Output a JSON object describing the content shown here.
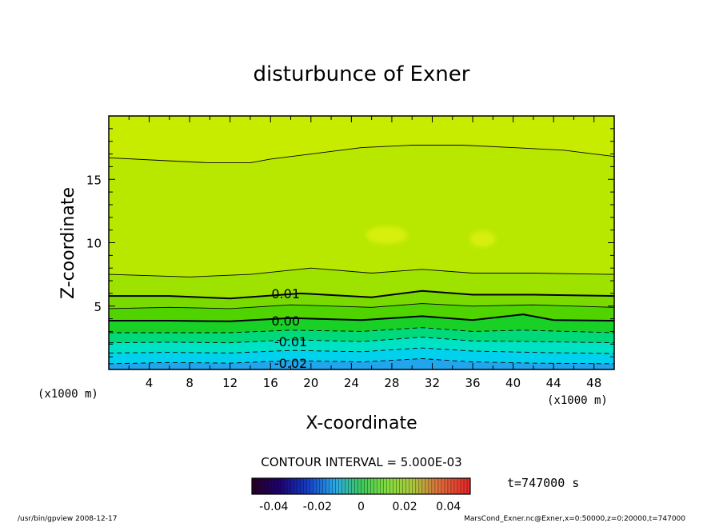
{
  "chart_data": {
    "type": "heatmap",
    "title": "disturbunce of Exner",
    "xlabel": "X-coordinate",
    "ylabel": "Z-coordinate",
    "x_unit_left": "(x1000 m)",
    "x_unit_right": "(x1000 m)",
    "xlim": [
      0,
      50
    ],
    "ylim": [
      0,
      20
    ],
    "x_ticks": [
      4,
      8,
      12,
      16,
      20,
      24,
      28,
      32,
      36,
      40,
      44,
      48
    ],
    "x_tick_labels": [
      "4",
      "8",
      "12",
      "16",
      "20",
      "24",
      "28",
      "32",
      "36",
      "40",
      "44",
      "48"
    ],
    "y_ticks": [
      5,
      10,
      15
    ],
    "y_tick_labels": [
      "5",
      "10",
      "15"
    ],
    "contour_interval_text": "CONTOUR INTERVAL = 5.000E-03",
    "contour_labels": [
      {
        "text": "0.01",
        "x": 17.5,
        "z": 6.0
      },
      {
        "text": "0.00",
        "x": 17.5,
        "z": 3.85
      },
      {
        "text": "-0.01",
        "x": 18.0,
        "z": 2.2
      },
      {
        "text": "-0.02",
        "x": 18.0,
        "z": 0.5
      }
    ],
    "contours": [
      {
        "level": 0.025,
        "style": "thin",
        "points": [
          [
            0,
            16.7
          ],
          [
            5,
            16.5
          ],
          [
            10,
            16.3
          ],
          [
            14,
            16.3
          ],
          [
            16,
            16.6
          ],
          [
            20,
            17.0
          ],
          [
            25,
            17.5
          ],
          [
            30,
            17.7
          ],
          [
            35,
            17.7
          ],
          [
            40,
            17.5
          ],
          [
            45,
            17.3
          ],
          [
            50,
            16.8
          ]
        ]
      },
      {
        "level": 0.015,
        "style": "thin",
        "points": [
          [
            0,
            7.5
          ],
          [
            8,
            7.3
          ],
          [
            14,
            7.5
          ],
          [
            20,
            8.0
          ],
          [
            26,
            7.6
          ],
          [
            31,
            7.9
          ],
          [
            36,
            7.6
          ],
          [
            42,
            7.6
          ],
          [
            50,
            7.5
          ]
        ]
      },
      {
        "level": 0.01,
        "style": "thick",
        "points": [
          [
            0,
            5.8
          ],
          [
            6,
            5.8
          ],
          [
            12,
            5.6
          ],
          [
            19,
            6.0
          ],
          [
            26,
            5.7
          ],
          [
            31,
            6.2
          ],
          [
            36,
            5.9
          ],
          [
            42,
            5.9
          ],
          [
            50,
            5.8
          ]
        ]
      },
      {
        "level": 0.005,
        "style": "thin",
        "points": [
          [
            0,
            4.8
          ],
          [
            6,
            4.9
          ],
          [
            12,
            4.8
          ],
          [
            18,
            5.1
          ],
          [
            26,
            4.9
          ],
          [
            31,
            5.2
          ],
          [
            36,
            5.0
          ],
          [
            42,
            5.1
          ],
          [
            50,
            4.9
          ]
        ]
      },
      {
        "level": 0.0,
        "style": "thick",
        "points": [
          [
            0,
            3.85
          ],
          [
            6,
            3.85
          ],
          [
            12,
            3.8
          ],
          [
            18,
            4.05
          ],
          [
            25,
            3.9
          ],
          [
            31,
            4.2
          ],
          [
            36,
            3.9
          ],
          [
            41,
            4.35
          ],
          [
            44,
            3.9
          ],
          [
            50,
            3.85
          ]
        ]
      },
      {
        "level": -0.005,
        "style": "dashed",
        "points": [
          [
            0,
            2.9
          ],
          [
            6,
            2.9
          ],
          [
            12,
            2.9
          ],
          [
            18,
            3.1
          ],
          [
            25,
            3.0
          ],
          [
            31,
            3.3
          ],
          [
            36,
            3.0
          ],
          [
            41,
            3.1
          ],
          [
            50,
            2.9
          ]
        ]
      },
      {
        "level": -0.01,
        "style": "dashed",
        "points": [
          [
            0,
            2.1
          ],
          [
            6,
            2.15
          ],
          [
            12,
            2.1
          ],
          [
            18,
            2.35
          ],
          [
            25,
            2.2
          ],
          [
            31,
            2.55
          ],
          [
            36,
            2.25
          ],
          [
            42,
            2.2
          ],
          [
            50,
            2.1
          ]
        ]
      },
      {
        "level": -0.015,
        "style": "dashed",
        "points": [
          [
            0,
            1.3
          ],
          [
            6,
            1.35
          ],
          [
            12,
            1.3
          ],
          [
            18,
            1.5
          ],
          [
            25,
            1.4
          ],
          [
            31,
            1.7
          ],
          [
            36,
            1.45
          ],
          [
            42,
            1.35
          ],
          [
            50,
            1.25
          ]
        ]
      },
      {
        "level": -0.02,
        "style": "dashed",
        "points": [
          [
            0,
            0.45
          ],
          [
            6,
            0.55
          ],
          [
            12,
            0.5
          ],
          [
            18,
            0.7
          ],
          [
            25,
            0.6
          ],
          [
            31,
            0.85
          ],
          [
            36,
            0.6
          ],
          [
            42,
            0.5
          ],
          [
            50,
            0.45
          ]
        ]
      }
    ],
    "fill_bands": [
      {
        "lo": 0.02,
        "color": "#c7ec00"
      },
      {
        "lo": 0.015,
        "color": "#b8e800"
      },
      {
        "lo": 0.01,
        "color": "#9ee200"
      },
      {
        "lo": 0.005,
        "color": "#7ada00"
      },
      {
        "lo": 0.0,
        "color": "#4fd400"
      },
      {
        "lo": -0.005,
        "color": "#19d026"
      },
      {
        "lo": -0.01,
        "color": "#00d97a"
      },
      {
        "lo": -0.015,
        "color": "#00e2c4"
      },
      {
        "lo": -0.02,
        "color": "#00d2ee"
      },
      {
        "lo": -0.025,
        "color": "#21a6ee"
      }
    ],
    "colorbar": {
      "vmin": -0.05,
      "vmax": 0.05,
      "tick_values": [
        -0.04,
        -0.02,
        0,
        0.02,
        0.04
      ],
      "tick_labels": [
        "-0.04",
        "-0.02",
        "0",
        "0.02",
        "0.04"
      ]
    },
    "time_label": "t=747000 s"
  },
  "footer": {
    "left": "/usr/bin/gpview  2008-12-17",
    "right": "MarsCond_Exner.nc@Exner,x=0:50000,z=0:20000,t=747000"
  }
}
